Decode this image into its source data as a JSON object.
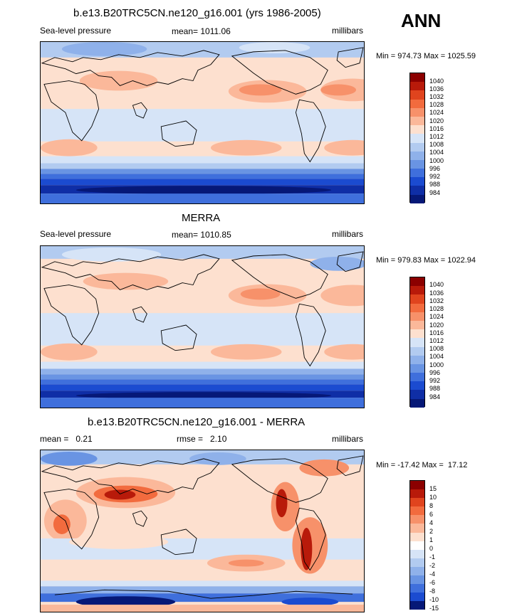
{
  "season": "ANN",
  "colors": {
    "slp": [
      "#8b0000",
      "#b81a0a",
      "#e0441e",
      "#f26b3e",
      "#f7916a",
      "#fbb89a",
      "#fde0cf",
      "#d6e4f7",
      "#b2cbf0",
      "#8fb1ea",
      "#6994e3",
      "#3f6fdc",
      "#1b4bd0",
      "#0f2ea6",
      "#061877"
    ],
    "diff": [
      "#8b0000",
      "#b81a0a",
      "#e0441e",
      "#f26b3e",
      "#f7916a",
      "#fbb89a",
      "#fde0cf",
      "#ffffff",
      "#d6e4f7",
      "#b2cbf0",
      "#8fb1ea",
      "#6994e3",
      "#3f6fdc",
      "#1b4bd0",
      "#061877"
    ]
  },
  "panels": [
    {
      "title": "b.e13.B20TRC5CN.ne120_g16.001 (yrs 1986-2005)",
      "left": "Sea-level pressure",
      "center": "mean= 1011.06",
      "right": "millibars",
      "minmax": "Min = 974.73 Max = 1025.59",
      "colorbar_labels": [
        "1040",
        "1036",
        "1032",
        "1028",
        "1024",
        "1020",
        "1016",
        "1012",
        "1008",
        "1004",
        "1000",
        "996",
        "992",
        "988",
        "984"
      ]
    },
    {
      "title": "MERRA",
      "left": "Sea-level pressure",
      "center": "mean= 1010.85",
      "right": "millibars",
      "minmax": "Min = 979.83 Max = 1022.94",
      "colorbar_labels": [
        "1040",
        "1036",
        "1032",
        "1028",
        "1024",
        "1020",
        "1016",
        "1012",
        "1008",
        "1004",
        "1000",
        "996",
        "992",
        "988",
        "984"
      ]
    },
    {
      "title": "b.e13.B20TRC5CN.ne120_g16.001 - MERRA",
      "left": "mean =   0.21",
      "center": "rmse =   2.10",
      "right": "millibars",
      "minmax": "Min = -17.42 Max =  17.12",
      "colorbar_labels": [
        "15",
        "10",
        "8",
        "6",
        "4",
        "2",
        "1",
        "0",
        "-1",
        "-2",
        "-4",
        "-6",
        "-8",
        "-10",
        "-15"
      ]
    }
  ]
}
